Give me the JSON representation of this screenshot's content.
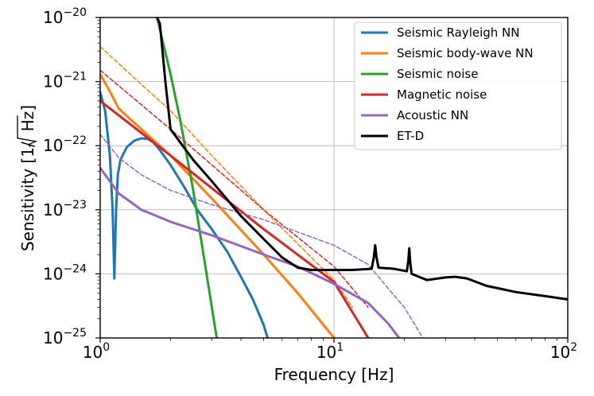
{
  "chart_data": {
    "type": "line",
    "title": "",
    "xlabel": "Frequency [Hz]",
    "ylabel": {
      "prefix": "Sensitivity [1/",
      "root": "Hz",
      "suffix": "]"
    },
    "xscale": "log",
    "yscale": "log",
    "xlim": [
      1,
      100
    ],
    "ylim": [
      1e-25,
      1e-20
    ],
    "grid": true,
    "legend_position": "top-right",
    "x_ticks": [
      {
        "value": 1,
        "base": "10",
        "exp": "0"
      },
      {
        "value": 10,
        "base": "10",
        "exp": "1"
      },
      {
        "value": 100,
        "base": "10",
        "exp": "2"
      }
    ],
    "y_ticks": [
      {
        "value": 1e-20,
        "base": "10",
        "exp": "−20"
      },
      {
        "value": 1e-21,
        "base": "10",
        "exp": "−21"
      },
      {
        "value": 1e-22,
        "base": "10",
        "exp": "−22"
      },
      {
        "value": 1e-23,
        "base": "10",
        "exp": "−23"
      },
      {
        "value": 1e-24,
        "base": "10",
        "exp": "−24"
      },
      {
        "value": 1e-25,
        "base": "10",
        "exp": "−25"
      }
    ],
    "series": [
      {
        "name": "Seismic Rayleigh NN",
        "color": "#1f77b4",
        "dashed": false,
        "legend": true,
        "x": [
          1.0,
          1.05,
          1.1,
          1.13,
          1.15,
          1.17,
          1.19,
          1.22,
          1.3,
          1.4,
          1.5,
          1.6,
          1.7,
          1.8,
          2.0,
          2.3,
          2.6,
          3.0,
          3.5,
          4.0,
          4.5,
          5.0,
          5.2
        ],
        "y": [
          6.8e-22,
          3.5e-22,
          7e-23,
          1e-23,
          8.5e-25,
          1e-23,
          3.5e-23,
          6e-23,
          9.5e-23,
          1.2e-22,
          1.3e-22,
          1.28e-22,
          1.1e-22,
          8.5e-23,
          5e-23,
          2.2e-23,
          1e-23,
          5e-24,
          2.2e-24,
          9e-25,
          4e-25,
          1.6e-25,
          1e-25
        ]
      },
      {
        "name": "Seismic body-wave NN",
        "color": "#ff7f0e",
        "dashed": false,
        "legend": true,
        "x": [
          1.0,
          1.1,
          1.2,
          1.5,
          2.0,
          3.0,
          5.0,
          7.0,
          10.0
        ],
        "y": [
          1.3e-21,
          7e-22,
          3.8e-22,
          1.8e-22,
          7e-23,
          1.5e-23,
          2e-24,
          5e-25,
          1e-25
        ]
      },
      {
        "name": "Seismic body-wave NN (dashed)",
        "color": "#ff7f0e",
        "dashed": true,
        "legend": false,
        "x": [
          1.0,
          1.5,
          2.0,
          3.0,
          5.0,
          8.0,
          10.0,
          12.0
        ],
        "y": [
          3.5e-21,
          9e-22,
          3.5e-22,
          7e-23,
          1e-23,
          1.8e-24,
          8e-25,
          3e-25
        ]
      },
      {
        "name": "Seismic noise",
        "color": "#2ca02c",
        "dashed": false,
        "legend": true,
        "x": [
          1.75,
          2.0,
          2.2,
          2.5,
          2.8,
          3.15
        ],
        "y": [
          1e-20,
          1.3e-21,
          2.5e-22,
          2e-23,
          1.5e-24,
          1e-25
        ]
      },
      {
        "name": "Magnetic noise",
        "color": "#d62728",
        "dashed": false,
        "legend": true,
        "x": [
          1.0,
          2.0,
          5.0,
          10.0,
          14.0
        ],
        "y": [
          5e-22,
          7e-23,
          5e-24,
          7.5e-25,
          1e-25
        ]
      },
      {
        "name": "Magnetic noise (dashed)",
        "color": "#d62728",
        "dashed": true,
        "legend": false,
        "x": [
          1.0,
          2.0,
          5.0,
          10.0,
          14.0
        ],
        "y": [
          1.5e-21,
          1.8e-22,
          1e-23,
          1.3e-24,
          3e-25
        ]
      },
      {
        "name": "Acoustic NN",
        "color": "#9467bd",
        "dashed": false,
        "legend": true,
        "x": [
          1.0,
          1.2,
          1.5,
          2.0,
          3.0,
          5.0,
          7.0,
          10.0,
          14.0,
          17.0,
          19.0
        ],
        "y": [
          4.5e-23,
          1.8e-23,
          1e-23,
          6.5e-24,
          4e-24,
          2e-24,
          1.3e-24,
          7e-25,
          3.5e-25,
          1.7e-25,
          1e-25
        ]
      },
      {
        "name": "Acoustic NN (dashed)",
        "color": "#9467bd",
        "dashed": true,
        "legend": false,
        "x": [
          1.0,
          1.2,
          1.5,
          2.0,
          3.0,
          5.0,
          7.0,
          10.0,
          14.0,
          17.0,
          20.0,
          24.0
        ],
        "y": [
          1.5e-22,
          6.5e-23,
          3.5e-23,
          2e-23,
          1.2e-23,
          7e-24,
          4.5e-24,
          2.8e-24,
          1.4e-24,
          6e-25,
          3e-25,
          1e-25
        ]
      },
      {
        "name": "ET-D",
        "color": "#000000",
        "dashed": false,
        "legend": true,
        "x": [
          1.75,
          1.8,
          1.9,
          2.0,
          2.5,
          3.0,
          4.0,
          5.0,
          6.0,
          7.0,
          8.0,
          10.0,
          12.0,
          14.5,
          14.8,
          15.0,
          15.2,
          15.5,
          18.0,
          20.5,
          20.8,
          21.0,
          21.2,
          21.5,
          25.0,
          30.0,
          33.0,
          37.0,
          45.0,
          60.0,
          80.0,
          100.0
        ],
        "y": [
          1e-20,
          8e-21,
          1e-21,
          1.8e-22,
          6e-23,
          2.8e-23,
          8e-24,
          3.5e-24,
          1.8e-24,
          1.25e-24,
          1.15e-24,
          1.15e-24,
          1.15e-24,
          1.2e-24,
          1.8e-24,
          2.8e-24,
          1.8e-24,
          1.25e-24,
          1.2e-24,
          1.1e-24,
          1.6e-24,
          2.5e-24,
          1.5e-24,
          1e-24,
          8e-25,
          8.8e-25,
          9e-25,
          8.5e-25,
          6.5e-25,
          5.2e-25,
          4.5e-25,
          4e-25
        ]
      }
    ]
  }
}
